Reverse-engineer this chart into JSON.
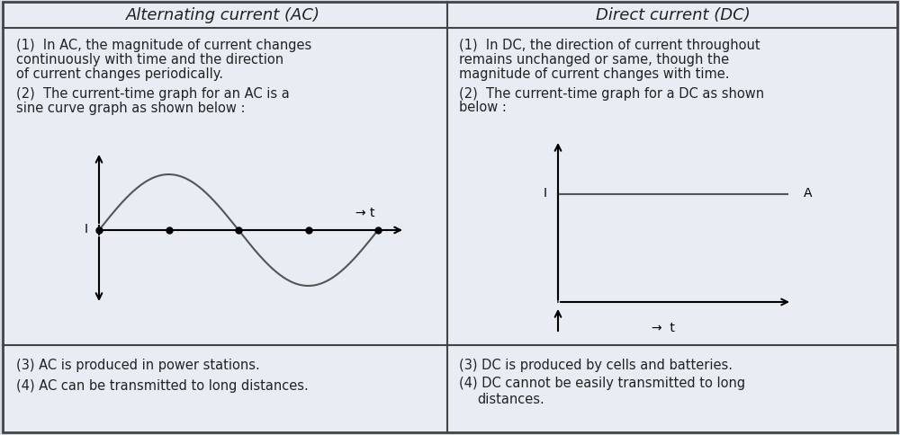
{
  "bg_color": "#d6dde8",
  "table_bg": "#e8edf4",
  "border_color": "#444444",
  "text_color": "#222222",
  "title_ac": "Alternating current (AC)",
  "title_dc": "Direct current (DC)",
  "ac_point1_line1": "(1)  In AC, the magnitude of current changes",
  "ac_point1_line2": "continuously with time and the direction",
  "ac_point1_line3": "of current changes periodically.",
  "ac_point2_line1": "(2)  The current-time graph for an AC is a",
  "ac_point2_line2": "sine curve graph as shown below :",
  "ac_point3": "(3) AC is produced in power stations.",
  "ac_point4": "(4) AC can be transmitted to long distances.",
  "dc_point1_line1": "(1)  In DC, the direction of current throughout",
  "dc_point1_line2": "remains unchanged or same, though the",
  "dc_point1_line3": "magnitude of current changes with time.",
  "dc_point2_line1": "(2)  The current-time graph for a DC as shown",
  "dc_point2_line2": "below :",
  "dc_point3": "(3) DC is produced by cells and batteries.",
  "dc_point4_line1": "(4) DC cannot be easily transmitted to long",
  "dc_point4_line2": "      distances.",
  "figsize": [
    10.0,
    4.85
  ],
  "dpi": 100
}
